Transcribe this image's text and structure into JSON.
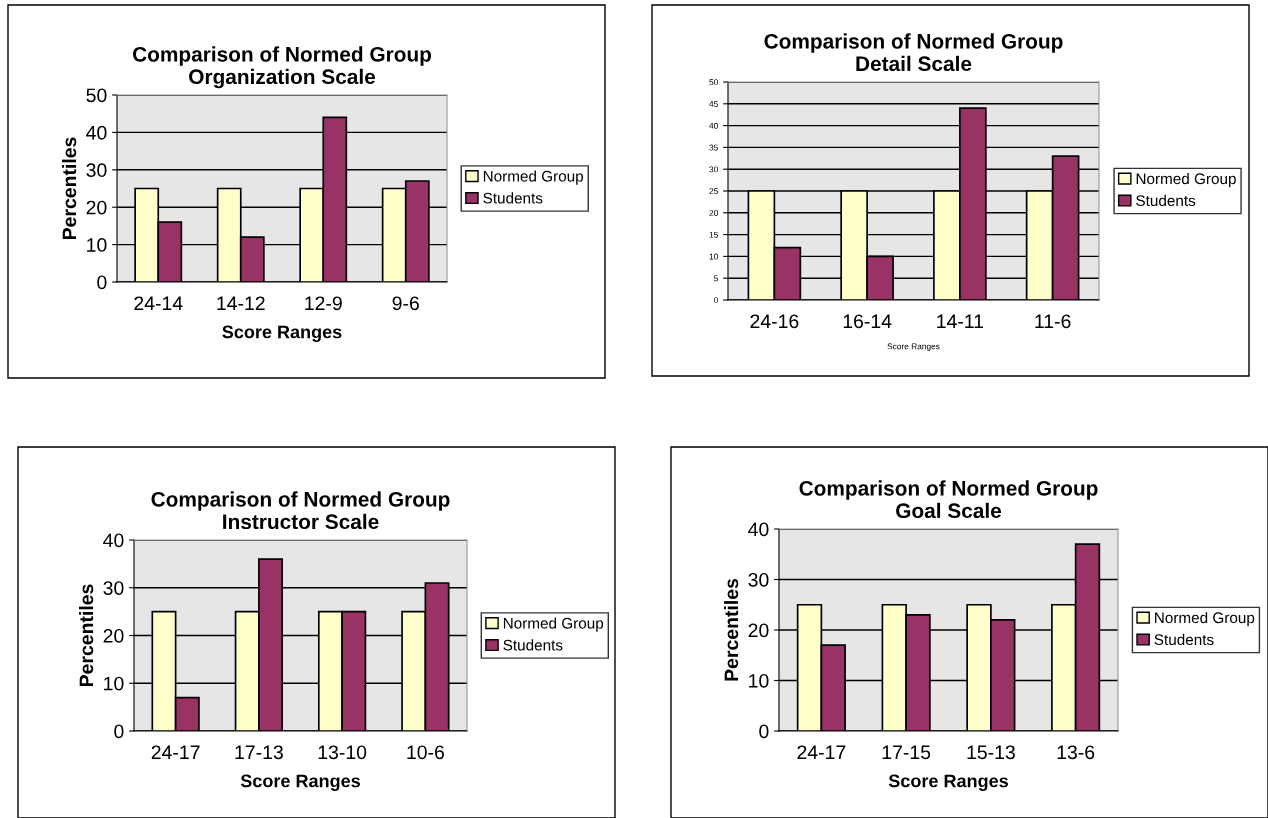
{
  "chart_data": [
    {
      "type": "bar",
      "title": "Comparison of Normed Group\nOrganization Scale",
      "xlabel": "Score Ranges",
      "ylabel": "Percentiles",
      "categories": [
        "24-14",
        "14-12",
        "12-9",
        "9-6"
      ],
      "series": [
        {
          "name": "Normed Group",
          "color": "#ffffcc",
          "values": [
            25,
            25,
            25,
            25
          ]
        },
        {
          "name": "Students",
          "color": "#993366",
          "values": [
            16,
            12,
            44,
            27
          ]
        }
      ],
      "ylim": [
        0,
        50
      ],
      "yticks": [
        0,
        10,
        20,
        30,
        40,
        50
      ],
      "grid": "y",
      "legend": "right"
    },
    {
      "type": "bar",
      "title": "Comparison of Normed Group\nDetail Scale",
      "xlabel": "Score Ranges",
      "categories": [
        "24-16",
        "16-14",
        "14-11",
        "11-6"
      ],
      "series": [
        {
          "name": "Normed Group",
          "color": "#ffffcc",
          "values": [
            25,
            25,
            25,
            25
          ]
        },
        {
          "name": "Students",
          "color": "#993366",
          "values": [
            12,
            10,
            44,
            33
          ]
        }
      ],
      "ylim": [
        0,
        50
      ],
      "yticks": [
        0,
        5,
        10,
        15,
        20,
        25,
        30,
        35,
        40,
        45,
        50
      ],
      "grid": "y",
      "legend": "right"
    },
    {
      "type": "bar",
      "title": "Comparison of Normed Group\nInstructor Scale",
      "xlabel": "Score Ranges",
      "ylabel": "Percentiles",
      "categories": [
        "24-17",
        "17-13",
        "13-10",
        "10-6"
      ],
      "series": [
        {
          "name": "Normed Group",
          "color": "#ffffcc",
          "values": [
            25,
            25,
            25,
            25
          ]
        },
        {
          "name": "Students",
          "color": "#993366",
          "values": [
            7,
            36,
            25,
            31
          ]
        }
      ],
      "ylim": [
        0,
        40
      ],
      "yticks": [
        0,
        10,
        20,
        30,
        40
      ],
      "grid": "y",
      "legend": "right"
    },
    {
      "type": "bar",
      "title": "Comparison of Normed Group\nGoal Scale",
      "xlabel": "Score Ranges",
      "ylabel": "Percentiles",
      "categories": [
        "24-17",
        "17-15",
        "15-13",
        "13-6"
      ],
      "series": [
        {
          "name": "Normed Group",
          "color": "#ffffcc",
          "values": [
            25,
            25,
            25,
            25
          ]
        },
        {
          "name": "Students",
          "color": "#993366",
          "values": [
            17,
            23,
            22,
            37
          ]
        }
      ],
      "ylim": [
        0,
        40
      ],
      "yticks": [
        0,
        10,
        20,
        30,
        40
      ],
      "grid": "y",
      "legend": "right"
    }
  ]
}
